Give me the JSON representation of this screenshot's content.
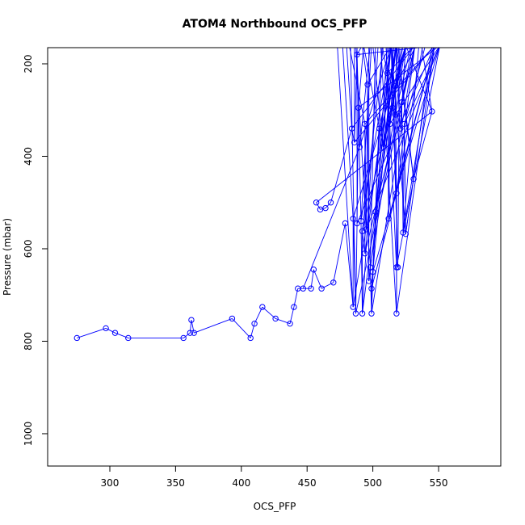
{
  "chart_data": {
    "type": "scatter",
    "title": "ATOM4 Northbound OCS_PFP",
    "xlabel": "OCS_PFP",
    "ylabel": "Pressure (mbar)",
    "xlim": [
      265,
      585
    ],
    "ylim": [
      1035,
      200
    ],
    "y_reversed": true,
    "xticks": [
      300,
      350,
      400,
      450,
      500,
      550
    ],
    "yticks": [
      200,
      400,
      600,
      800,
      1000
    ],
    "grid": false,
    "series_color": "#0000ff",
    "series": [
      {
        "marker": "open-circle",
        "connected": true,
        "points": [
          [
            275,
            793
          ],
          [
            297,
            772
          ],
          [
            304,
            782
          ],
          [
            314,
            793
          ],
          [
            356,
            793
          ],
          [
            361,
            782
          ],
          [
            362,
            754
          ],
          [
            364,
            782
          ],
          [
            393,
            751
          ],
          [
            407,
            793
          ],
          [
            410,
            762
          ],
          [
            416,
            726
          ],
          [
            426,
            751
          ],
          [
            437,
            762
          ],
          [
            440,
            726
          ],
          [
            443,
            686
          ],
          [
            453,
            686
          ],
          [
            455,
            645
          ],
          [
            461,
            686
          ],
          [
            470,
            673
          ],
          [
            479,
            545
          ],
          [
            485,
            726
          ],
          [
            485,
            535
          ],
          [
            487,
            740
          ],
          [
            488,
            545
          ],
          [
            489,
            295
          ],
          [
            491,
            540
          ],
          [
            492,
            740
          ],
          [
            492,
            562
          ],
          [
            494,
            610
          ],
          [
            494,
            330
          ],
          [
            495,
            558
          ],
          [
            496,
            245
          ],
          [
            497,
            670
          ],
          [
            498,
            640
          ],
          [
            499,
            740
          ],
          [
            499,
            686
          ],
          [
            500,
            650
          ],
          [
            502,
            520
          ],
          [
            505,
            340
          ],
          [
            508,
            380
          ],
          [
            511,
            220
          ],
          [
            512,
            535
          ],
          [
            513,
            330
          ],
          [
            515,
            295
          ],
          [
            517,
            310
          ],
          [
            517,
            248
          ],
          [
            518,
            480
          ],
          [
            518,
            740
          ],
          [
            518,
            640
          ],
          [
            519,
            640
          ],
          [
            520,
            308
          ],
          [
            521,
            340
          ],
          [
            522,
            283
          ],
          [
            523,
            565
          ],
          [
            524,
            330
          ],
          [
            525,
            568
          ],
          [
            531,
            449
          ],
          [
            545,
            303
          ],
          [
            457,
            500
          ],
          [
            460,
            515
          ],
          [
            464,
            512
          ],
          [
            468,
            500
          ],
          [
            484,
            340
          ],
          [
            486,
            370
          ],
          [
            488,
            180
          ],
          [
            490,
            380
          ],
          [
            447,
            686
          ]
        ]
      }
    ]
  }
}
